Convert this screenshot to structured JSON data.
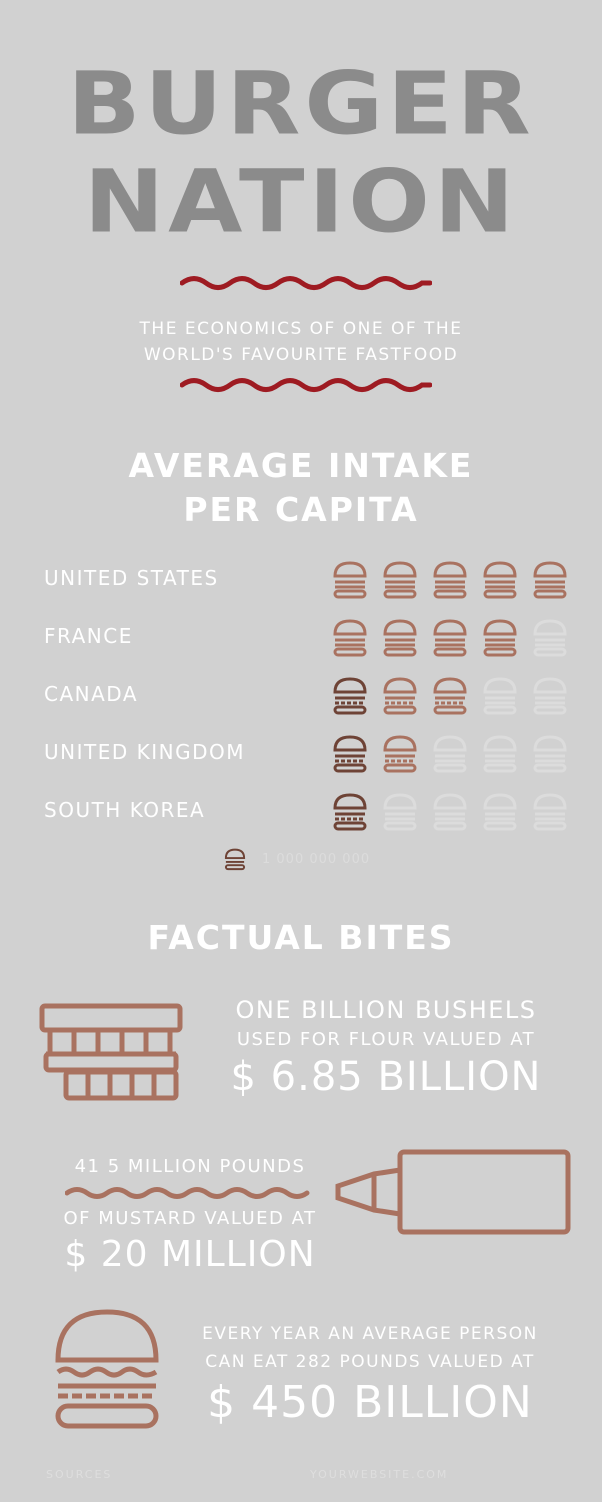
{
  "header": {
    "title_line1": "BURGER",
    "title_line2": "NATION",
    "subtitle_line1": "THE ECONOMICS OF ONE OF THE",
    "subtitle_line2": "WORLD'S FAVOURITE FASTFOOD"
  },
  "intake": {
    "heading_line1": "AVERAGE INTAKE",
    "heading_line2": "PER CAPITA",
    "rows": [
      {
        "country": "UNITED STATES",
        "filled": 5,
        "total": 5
      },
      {
        "country": "FRANCE",
        "filled": 4,
        "total": 5
      },
      {
        "country": "CANADA",
        "filled": 3,
        "total": 5
      },
      {
        "country": "UNITED KINGDOM",
        "filled": 2,
        "total": 5
      },
      {
        "country": "SOUTH KOREA",
        "filled": 1,
        "total": 5
      }
    ],
    "legend_value": "1 000 000 000"
  },
  "facts": {
    "heading": "FACTUAL BITES",
    "flour": {
      "line1": "ONE BILLION BUSHELS",
      "line2": "USED FOR FLOUR VALUED AT",
      "value": "$ 6.85 BILLION"
    },
    "mustard": {
      "line1": "41 5 MILLION POUNDS",
      "line2": "OF MUSTARD VALUED AT",
      "value": "$ 20 MILLION"
    },
    "burger": {
      "line1": "EVERY YEAR AN AVERAGE PERSON",
      "line2": "CAN EAT 282 POUNDS VALUED AT",
      "value": "$ 450 BILLION"
    }
  },
  "footer": {
    "sources": "SOURCES",
    "website": "YOURWEBSITE.COM"
  },
  "colors": {
    "background": "#d1d1d1",
    "title": "#8b8b8b",
    "accent_red": "#9e1b22",
    "icon_brown": "#a97260",
    "icon_dark_brown": "#6e4336",
    "faded_icon": "#dcdcdc"
  },
  "icons": {
    "burger": "burger-icon",
    "bread": "bread-icon",
    "mustard": "mustard-bottle-icon"
  }
}
